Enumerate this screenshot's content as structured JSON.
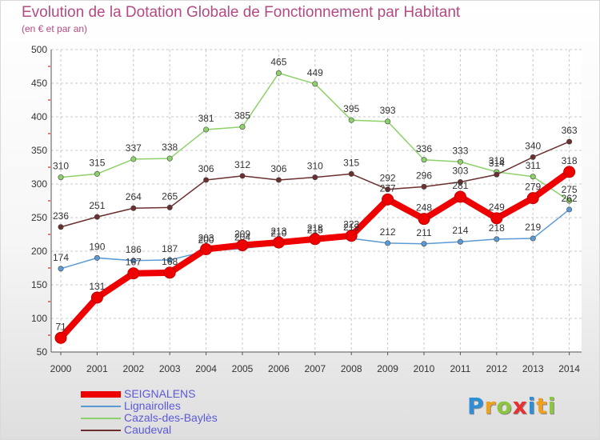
{
  "title": "Evolution de la Dotation Globale de Fonctionnement par Habitant",
  "subtitle": "(en € et par an)",
  "logo": {
    "text": "Proxiti",
    "letters": [
      {
        "ch": "P",
        "color": "#2f8fd6"
      },
      {
        "ch": "r",
        "color": "#f0a020"
      },
      {
        "ch": "o",
        "color": "#8cc63f"
      },
      {
        "ch": "x",
        "color": "#e83030"
      },
      {
        "ch": "i",
        "color": "#2f8fd6"
      },
      {
        "ch": "t",
        "color": "#f0a020"
      },
      {
        "ch": "i",
        "color": "#8cc63f"
      }
    ]
  },
  "chart_data": {
    "type": "line",
    "x": [
      "2000",
      "2001",
      "2002",
      "2003",
      "2004",
      "2005",
      "2006",
      "2007",
      "2008",
      "2009",
      "2010",
      "2011",
      "2012",
      "2013",
      "2014"
    ],
    "ylim": [
      50,
      500
    ],
    "yticks": [
      50,
      100,
      150,
      200,
      250,
      300,
      350,
      400,
      450,
      500
    ],
    "grid": true,
    "legend_position": "bottom-left",
    "series": [
      {
        "name": "SEIGNALENS",
        "color": "#ee0000",
        "values": [
          71,
          131,
          167,
          168,
          203,
          209,
          213,
          218,
          223,
          277,
          248,
          281,
          249,
          279,
          318
        ],
        "labels": [
          "71",
          "131",
          "167",
          "168",
          "203",
          "209",
          "213",
          "218",
          "223",
          "277",
          "248",
          "281",
          "249",
          "279",
          "318"
        ]
      },
      {
        "name": "Lignairolles",
        "color": "#5b9bd5",
        "values": [
          174,
          190,
          186,
          187,
          200,
          204,
          210,
          215,
          219,
          212,
          211,
          214,
          218,
          219,
          262
        ],
        "labels": [
          "174",
          "190",
          "186",
          "187",
          "200",
          "204",
          "210",
          "215",
          "219",
          "212",
          "211",
          "214",
          "218",
          "219",
          "262"
        ]
      },
      {
        "name": "Cazals-des-Baylès",
        "color": "#8ed16a",
        "values": [
          310,
          315,
          337,
          338,
          381,
          385,
          465,
          449,
          395,
          393,
          336,
          333,
          318,
          311,
          275
        ],
        "labels": [
          "310",
          "315",
          "337",
          "338",
          "381",
          "385",
          "465",
          "449",
          "395",
          "393",
          "336",
          "333",
          "318",
          "311",
          "275"
        ]
      },
      {
        "name": "Caudeval",
        "color": "#6b2f2f",
        "values": [
          236,
          251,
          264,
          265,
          306,
          312,
          306,
          310,
          315,
          292,
          296,
          303,
          314,
          340,
          363
        ],
        "labels": [
          "236",
          "251",
          "264",
          "265",
          "306",
          "312",
          "306",
          "310",
          "315",
          "292",
          "296",
          "303",
          "314",
          "340",
          "363"
        ]
      }
    ]
  }
}
